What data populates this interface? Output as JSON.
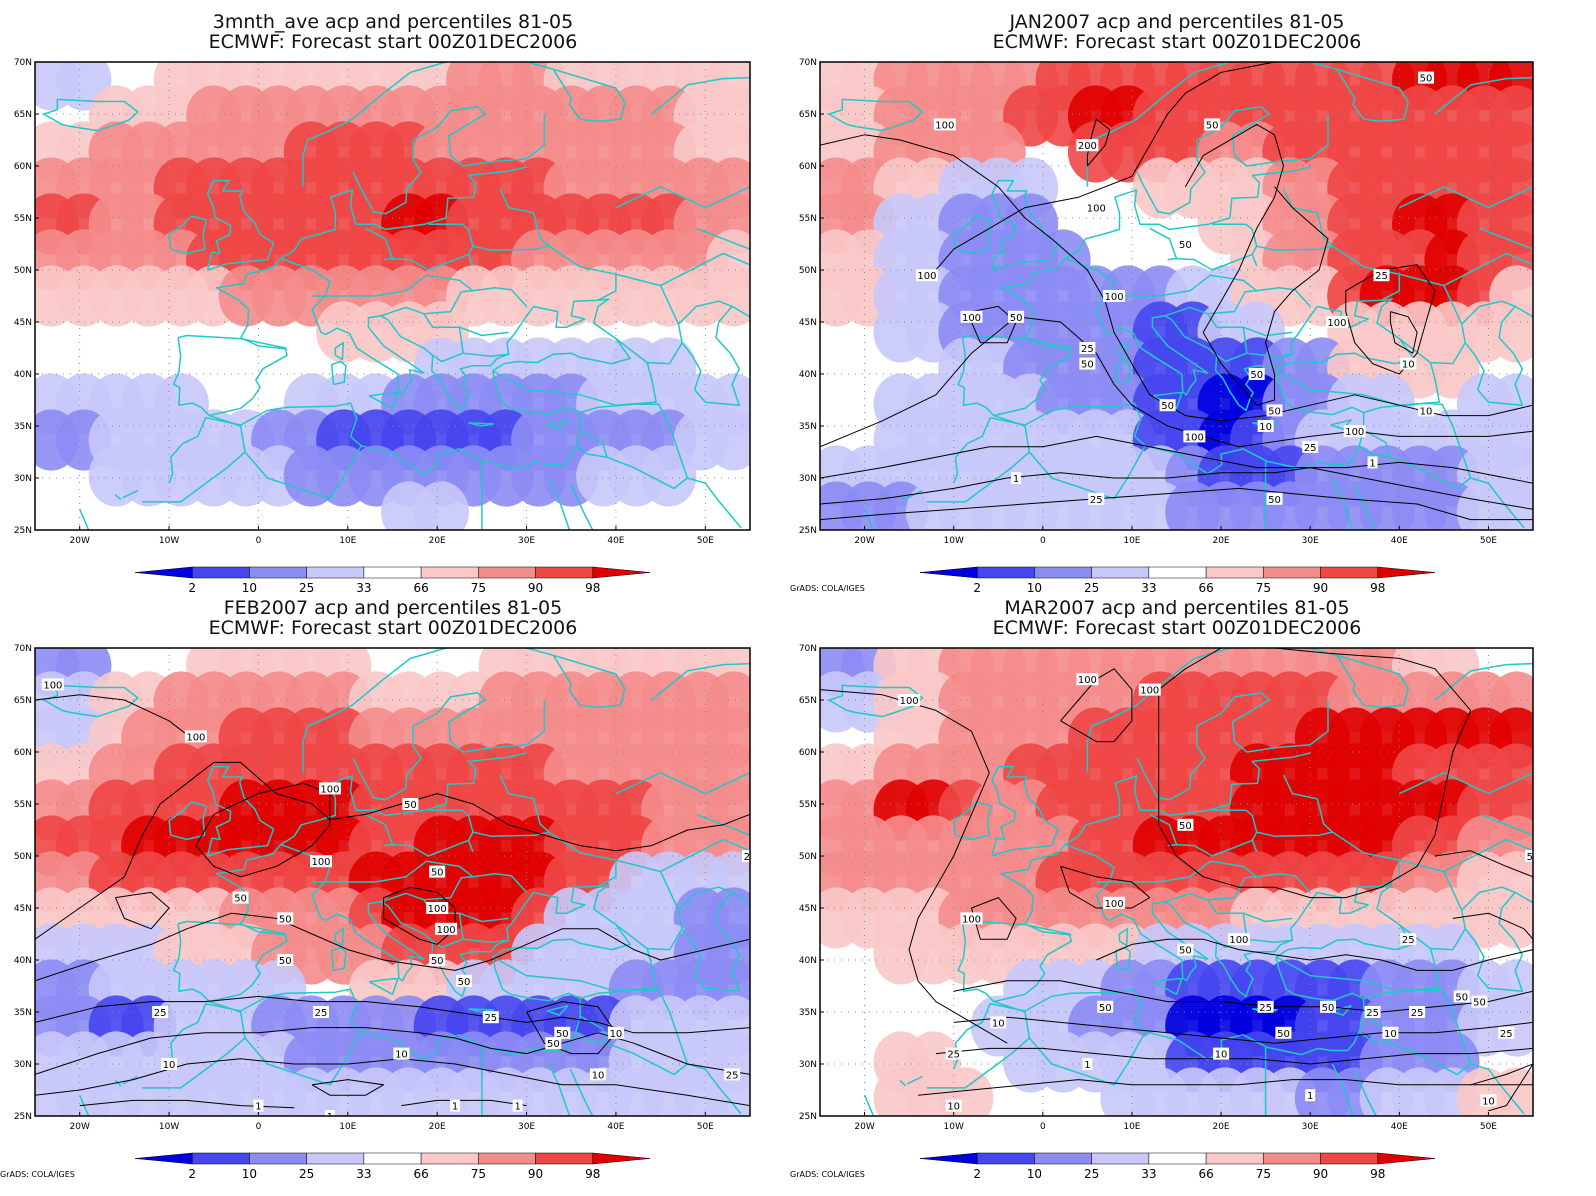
{
  "figure": {
    "credit": "GrADS: COLA/IGES",
    "colors": {
      "coast": "#20c8c8",
      "contour": "#000000",
      "b2": "#0000e0",
      "b10": "#4646f0",
      "b25": "#8c8cf5",
      "b33": "#c8c8fa",
      "r66": "#fac8c8",
      "r75": "#f58c8c",
      "r90": "#f04646",
      "r98": "#e00000"
    }
  },
  "panels": [
    {
      "id": "mean",
      "title_line1": "3mnth_ave acp and percentiles 81-05",
      "title_line2": "ECMWF: Forecast start 00Z01DEC2006",
      "show_credit": false,
      "contour_labels": []
    },
    {
      "id": "jan",
      "title_line1": "JAN2007 acp and percentiles 81-05",
      "title_line2": "ECMWF: Forecast start 00Z01DEC2006",
      "show_credit": true,
      "contour_labels": [
        "50",
        "100",
        "200",
        "50",
        "100",
        "50",
        "100",
        "100",
        "100",
        "50",
        "25",
        "50",
        "25",
        "100",
        "50",
        "50",
        "50",
        "100",
        "10",
        "10",
        "25",
        "1",
        "1",
        "25",
        "50",
        "10",
        "100"
      ]
    },
    {
      "id": "feb",
      "title_line1": "FEB2007 acp and percentiles 81-05",
      "title_line2": "ECMWF: Forecast start 00Z01DEC2006",
      "show_credit": true,
      "contour_labels": [
        "100",
        "100",
        "100",
        "50",
        "50",
        "100",
        "50",
        "100",
        "100",
        "50",
        "50",
        "50",
        "50",
        "25",
        "25",
        "10",
        "10",
        "25",
        "50",
        "10",
        "25",
        "1",
        "1",
        "1",
        "1",
        "10",
        "50",
        "25"
      ]
    },
    {
      "id": "mar",
      "title_line1": "MAR2007 acp and percentiles 81-05",
      "title_line2": "ECMWF: Forecast start 00Z01DEC2006",
      "show_credit": true,
      "contour_labels": [
        "100",
        "100",
        "100",
        "50",
        "100",
        "100",
        "100",
        "50",
        "50",
        "25",
        "25",
        "50",
        "10",
        "1",
        "10",
        "1",
        "10",
        "50",
        "25",
        "25",
        "25",
        "50",
        "10",
        "50",
        "10",
        "50",
        "25"
      ]
    }
  ],
  "axes": {
    "lat_labels": [
      "70N",
      "65N",
      "60N",
      "55N",
      "50N",
      "45N",
      "40N",
      "35N",
      "30N",
      "25N"
    ],
    "lon_labels": [
      "20W",
      "10W",
      "0",
      "10E",
      "20E",
      "30E",
      "40E",
      "50E"
    ]
  },
  "colorbar": {
    "labels": [
      "2",
      "10",
      "25",
      "33",
      "66",
      "75",
      "90",
      "98"
    ]
  }
}
